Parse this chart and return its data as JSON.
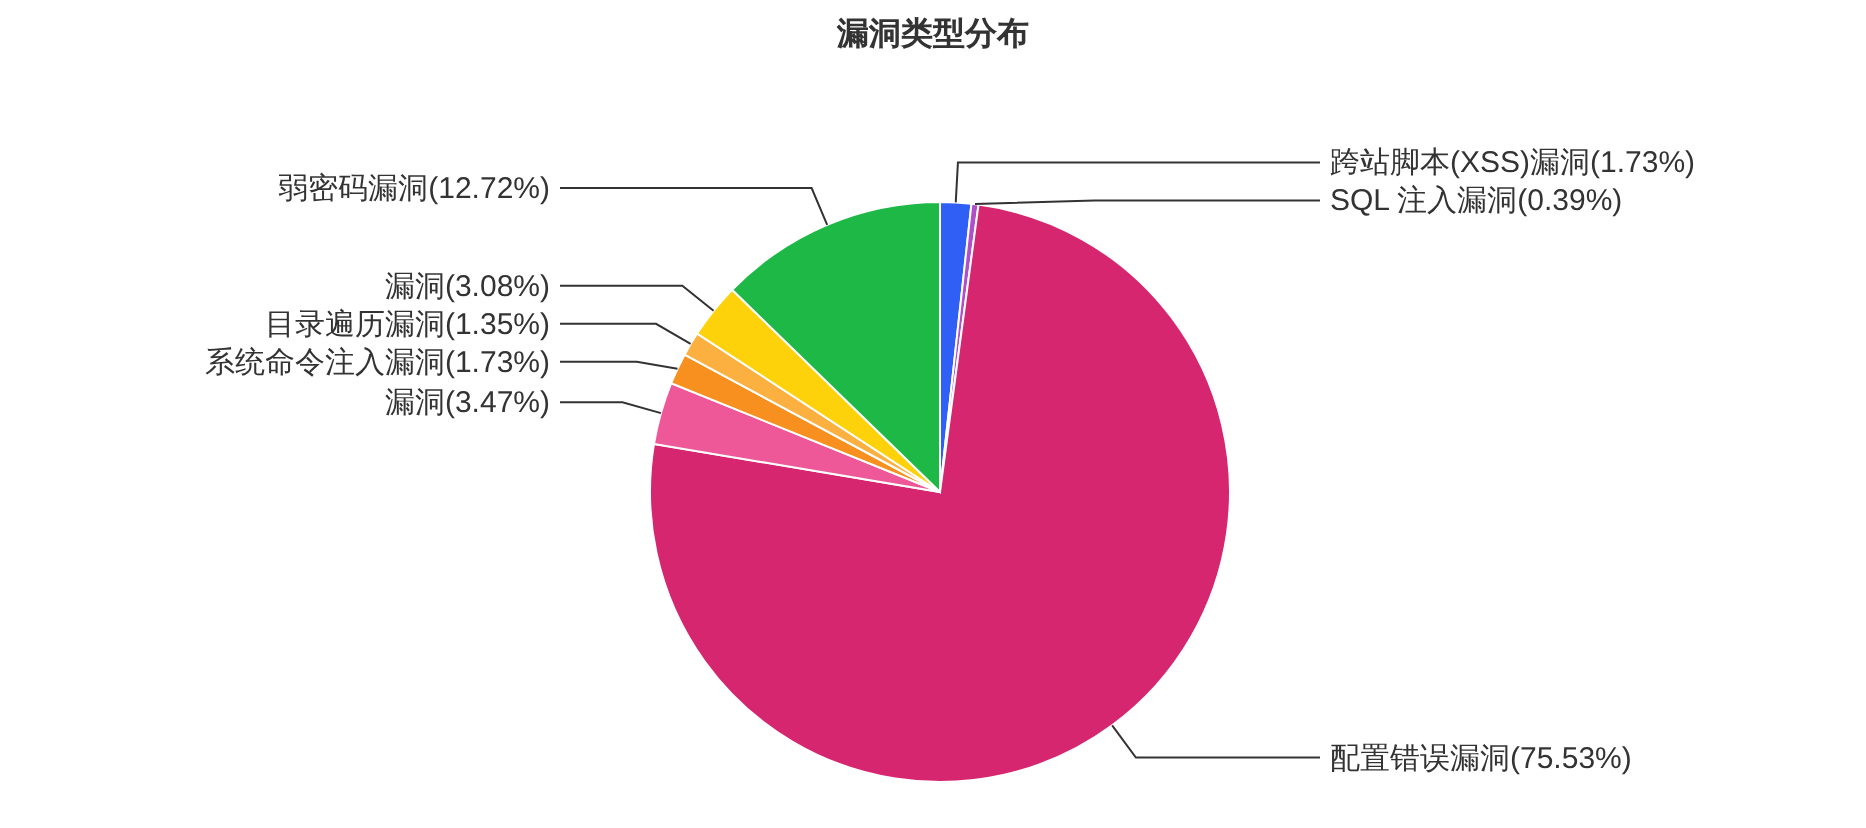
{
  "chart_data": {
    "type": "pie",
    "title": "漏洞类型分布",
    "categories": [
      "跨站脚本(XSS)漏洞(1.73%)",
      "SQL 注入漏洞(0.39%)",
      "配置错误漏洞(75.53%)",
      "漏洞(3.47%)",
      "系统命令注入漏洞(1.73%)",
      "目录遍历漏洞(1.35%)",
      "漏洞(3.08%)",
      "弱密码漏洞(12.72%)"
    ],
    "values": [
      1.73,
      0.39,
      75.53,
      3.47,
      1.73,
      1.35,
      3.08,
      12.72
    ],
    "colors": [
      "#2f5ff5",
      "#b04fc8",
      "#d62670",
      "#ee5898",
      "#f7901e",
      "#fbb040",
      "#fed20a",
      "#1db846"
    ]
  }
}
